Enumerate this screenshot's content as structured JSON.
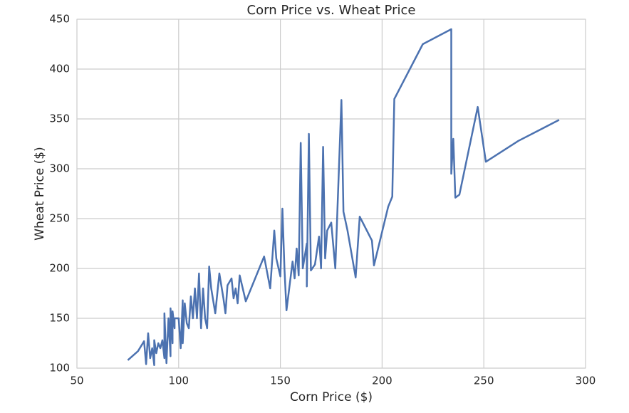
{
  "chart_data": {
    "type": "line",
    "title": "Corn Price vs. Wheat Price",
    "x_label": "Corn Price ($)",
    "y_label": "Wheat Price ($)",
    "x": [
      75,
      80,
      83,
      84,
      85,
      86,
      87,
      88,
      88,
      89,
      90,
      91,
      92,
      93,
      93,
      94,
      95,
      96,
      96,
      97,
      97,
      98,
      98,
      100,
      101,
      102,
      102,
      103,
      104,
      105,
      106,
      107,
      108,
      109,
      110,
      111,
      112,
      113,
      114,
      115,
      116,
      118,
      119,
      120,
      122,
      123,
      124,
      126,
      127,
      128,
      129,
      130,
      133,
      142,
      145,
      147,
      148,
      150,
      151,
      152,
      153,
      156,
      157,
      158,
      159,
      160,
      161,
      163,
      163,
      164,
      165,
      167,
      169,
      170,
      171,
      172,
      173,
      175,
      177,
      180,
      181,
      183,
      187,
      189,
      195,
      196,
      203,
      205,
      206,
      220,
      234,
      234,
      235,
      236,
      238,
      247,
      251,
      267,
      287
    ],
    "series": [
      {
        "name": "Wheat Price",
        "color": "#4c72b0",
        "values": [
          108,
          117,
          127,
          104,
          135,
          110,
          120,
          103,
          128,
          115,
          125,
          120,
          128,
          110,
          155,
          105,
          150,
          112,
          160,
          125,
          157,
          140,
          150,
          150,
          120,
          168,
          125,
          165,
          145,
          140,
          172,
          150,
          180,
          150,
          195,
          140,
          180,
          150,
          140,
          202,
          180,
          155,
          175,
          195,
          170,
          155,
          183,
          190,
          170,
          180,
          165,
          193,
          167,
          212,
          180,
          238,
          210,
          192,
          260,
          200,
          158,
          207,
          190,
          220,
          193,
          326,
          200,
          225,
          182,
          335,
          198,
          204,
          232,
          200,
          322,
          210,
          238,
          246,
          200,
          369,
          257,
          238,
          191,
          252,
          228,
          203,
          262,
          272,
          370,
          425,
          440,
          295,
          330,
          271,
          274,
          362,
          307,
          328,
          349
        ]
      }
    ],
    "xlim": [
      50,
      300
    ],
    "ylim": [
      100,
      450
    ],
    "xticks": [
      50,
      100,
      150,
      200,
      250,
      300
    ],
    "yticks": [
      100,
      150,
      200,
      250,
      300,
      350,
      400,
      450
    ],
    "grid": true
  }
}
